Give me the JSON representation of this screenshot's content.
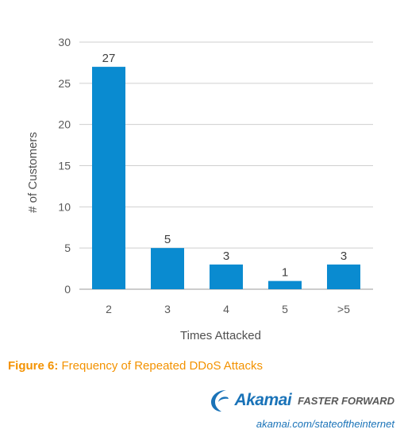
{
  "chart_data": {
    "type": "bar",
    "categories": [
      "2",
      "3",
      "4",
      "5",
      ">5"
    ],
    "values": [
      27,
      5,
      3,
      1,
      3
    ],
    "data_labels": [
      "27",
      "5",
      "3",
      "1",
      "3"
    ],
    "xlabel": "Times Attacked",
    "ylabel": "# of Customers",
    "ylim": [
      0,
      30
    ],
    "yticks": [
      0,
      5,
      10,
      15,
      20,
      25,
      30
    ],
    "grid": true,
    "legend": "none",
    "bar_color": "#0a8bd0"
  },
  "caption": {
    "label": "Figure 6:",
    "text": "Frequency of Repeated DDoS Attacks"
  },
  "brand": {
    "name": "Akamai",
    "tagline": "FASTER FORWARD",
    "url": "akamai.com/stateoftheinternet",
    "color": "#1a73b8"
  }
}
